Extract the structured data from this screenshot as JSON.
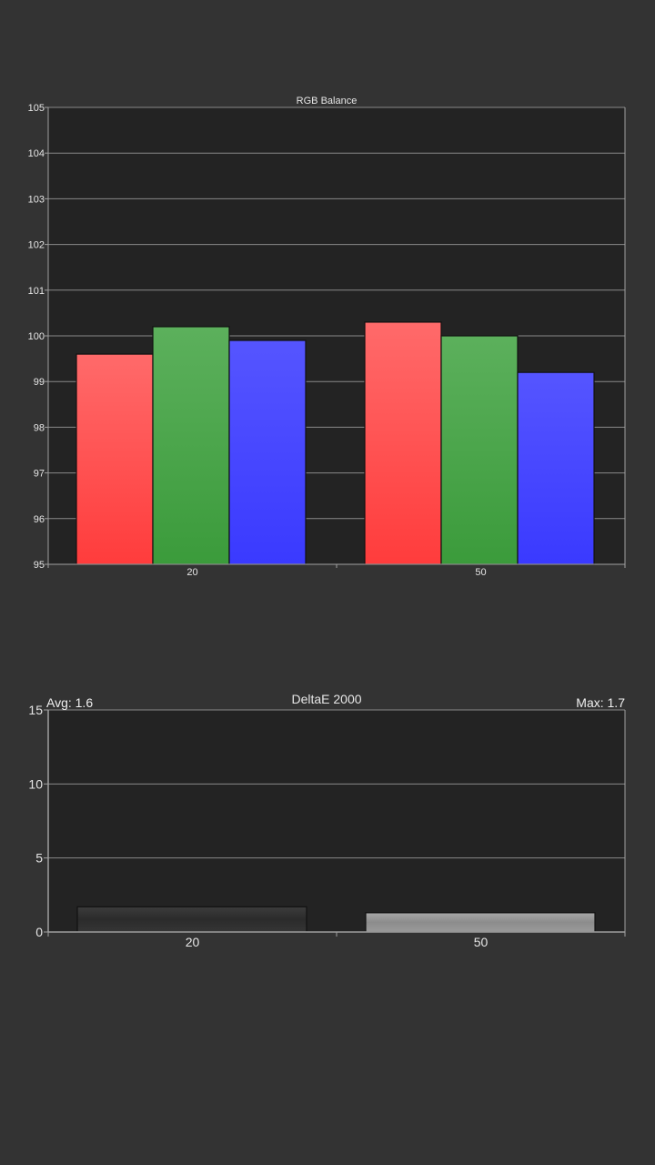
{
  "colors": {
    "background": "#333333",
    "plot_area": "#232323",
    "gridline": "#8a8a8a",
    "axis": "#a0a0a0",
    "text": "#e6e6e6",
    "red": "#ff4b4b",
    "green": "#4caf50",
    "blue": "#4646ff"
  },
  "chart_data": [
    {
      "type": "bar",
      "title": "RGB Balance",
      "categories": [
        "20",
        "50"
      ],
      "series": [
        {
          "color": "red",
          "values": [
            99.6,
            100.3
          ]
        },
        {
          "color": "green",
          "values": [
            100.2,
            100.0
          ]
        },
        {
          "color": "blue",
          "values": [
            99.9,
            99.2
          ]
        }
      ],
      "ylim": [
        95,
        105
      ],
      "yticks": [
        "95",
        "96",
        "97",
        "98",
        "99",
        "100",
        "101",
        "102",
        "103",
        "104",
        "105"
      ],
      "grid": true,
      "legend": "none"
    },
    {
      "type": "bar",
      "title": "DeltaE 2000",
      "avg_label": "Avg: 1.6",
      "max_label": "Max: 1.7",
      "categories": [
        "20",
        "50"
      ],
      "values": [
        1.7,
        1.3
      ],
      "bar_colors": [
        "dark-gray",
        "light-gray"
      ],
      "ylim": [
        0,
        15
      ],
      "yticks": [
        "0",
        "5",
        "10",
        "15"
      ],
      "grid": true,
      "legend": "none"
    }
  ]
}
